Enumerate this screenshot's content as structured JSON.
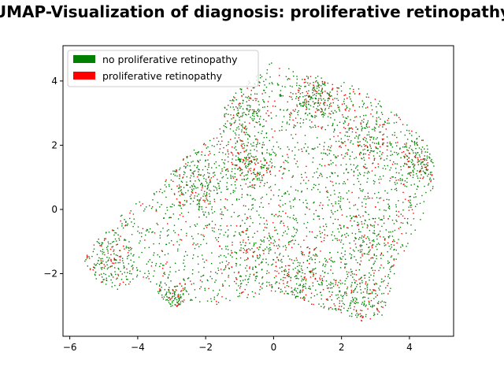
{
  "chart_data": {
    "type": "scatter",
    "title": "UMAP-Visualization of diagnosis: proliferative retinopathy",
    "xlabel": "",
    "ylabel": "",
    "xlim": [
      -6.2,
      5.3
    ],
    "ylim": [
      -3.95,
      5.1
    ],
    "xticks": [
      -6,
      -4,
      -2,
      0,
      2,
      4
    ],
    "yticks": [
      -2,
      0,
      2,
      4
    ],
    "grid": false,
    "legend_position": "top-left",
    "series": [
      {
        "name": "no proliferative retinopathy",
        "color": "#008000",
        "count": 3000
      },
      {
        "name": "proliferative retinopathy",
        "color": "#ff0000",
        "count": 900
      }
    ],
    "region_outline": [
      [
        -5.6,
        -1.6
      ],
      [
        -5.2,
        -0.9
      ],
      [
        -4.6,
        -0.3
      ],
      [
        -4.1,
        0.2
      ],
      [
        -3.6,
        0.4
      ],
      [
        -3.2,
        0.9
      ],
      [
        -2.9,
        1.4
      ],
      [
        -2.3,
        1.9
      ],
      [
        -1.6,
        2.4
      ],
      [
        -1.5,
        3.2
      ],
      [
        -1.1,
        3.7
      ],
      [
        -0.5,
        4.2
      ],
      [
        -0.2,
        4.5
      ],
      [
        0.1,
        4.65
      ],
      [
        0.8,
        4.3
      ],
      [
        1.5,
        4.1
      ],
      [
        2.2,
        3.95
      ],
      [
        3.0,
        3.5
      ],
      [
        3.6,
        3.0
      ],
      [
        4.1,
        2.5
      ],
      [
        4.5,
        2.1
      ],
      [
        4.75,
        1.55
      ],
      [
        4.7,
        0.6
      ],
      [
        4.4,
        -0.2
      ],
      [
        4.0,
        -1.0
      ],
      [
        3.6,
        -1.8
      ],
      [
        3.4,
        -2.7
      ],
      [
        3.2,
        -3.3
      ],
      [
        2.6,
        -3.5
      ],
      [
        1.9,
        -3.2
      ],
      [
        1.2,
        -3.0
      ],
      [
        0.5,
        -2.7
      ],
      [
        -0.5,
        -2.7
      ],
      [
        -1.5,
        -3.0
      ],
      [
        -2.5,
        -2.9
      ],
      [
        -3.0,
        -3.1
      ],
      [
        -3.8,
        -2.1
      ],
      [
        -4.6,
        -2.5
      ],
      [
        -5.2,
        -2.2
      ]
    ],
    "clusters": [
      [
        -4.9,
        -1.7,
        0.5
      ],
      [
        -3.0,
        -2.9,
        0.3
      ],
      [
        -2.2,
        0.8,
        0.5
      ],
      [
        -1.0,
        3.2,
        0.5
      ],
      [
        2.9,
        -1.0,
        0.7
      ],
      [
        2.6,
        2.2,
        0.7
      ],
      [
        4.3,
        1.5,
        0.4
      ],
      [
        0.9,
        -2.3,
        0.5
      ],
      [
        -0.7,
        1.5,
        0.4
      ],
      [
        -0.5,
        -1.2,
        0.6
      ],
      [
        2.5,
        -2.9,
        0.5
      ],
      [
        1.2,
        3.4,
        0.4
      ]
    ]
  }
}
